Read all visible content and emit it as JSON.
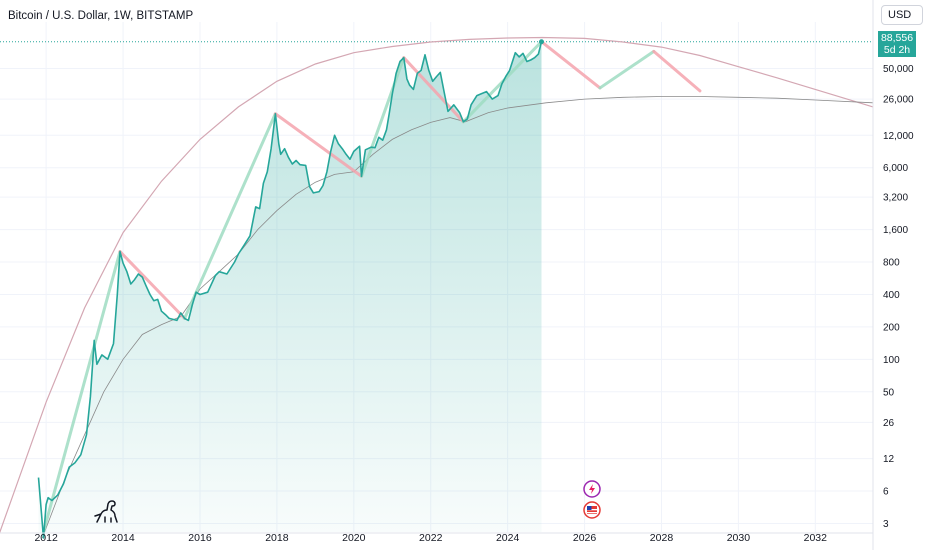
{
  "header": {
    "title": "Bitcoin / U.S. Dollar, 1W, BITSTAMP",
    "currency": "USD"
  },
  "price_badge": {
    "price": "88,556",
    "countdown": "5d 2h"
  },
  "icons": [
    "dinosaur-icon",
    "lightning-event-icon",
    "us-flag-event-icon"
  ],
  "colors": {
    "price_line": "#26a69a",
    "area_fill": "#26a69a",
    "up_segment": "#9fdcc2",
    "down_segment": "#f4a3ad",
    "upper_arc": "#d4a7b3",
    "lower_arc": "#8a8a8a"
  },
  "chart_data": {
    "type": "line",
    "scale": "log",
    "ylim": [
      2.5,
      135000
    ],
    "xlim": [
      2010.8,
      2033.5
    ],
    "yticks": [
      3,
      6,
      12,
      26,
      50,
      100,
      200,
      400,
      800,
      1600,
      3200,
      6000,
      12000,
      26000,
      50000
    ],
    "ytick_labels": [
      "3",
      "6",
      "12",
      "26",
      "50",
      "100",
      "200",
      "400",
      "800",
      "1,600",
      "3,200",
      "6,000",
      "12,000",
      "26,000",
      "50,000"
    ],
    "xticks": [
      2012,
      2014,
      2016,
      2018,
      2020,
      2022,
      2024,
      2026,
      2028,
      2030,
      2032
    ],
    "xtick_labels": [
      "2012",
      "2014",
      "2016",
      "2018",
      "2020",
      "2022",
      "2024",
      "2026",
      "2028",
      "2030",
      "2032"
    ],
    "series": [
      {
        "points": [
          [
            2011.8,
            8
          ],
          [
            2011.93,
            2.2
          ],
          [
            2012.0,
            4.5
          ],
          [
            2012.05,
            5.2
          ],
          [
            2012.15,
            4.9
          ],
          [
            2012.3,
            5.5
          ],
          [
            2012.45,
            7
          ],
          [
            2012.6,
            10
          ],
          [
            2012.75,
            11
          ],
          [
            2012.9,
            13
          ],
          [
            2013.05,
            20
          ],
          [
            2013.15,
            45
          ],
          [
            2013.25,
            150
          ],
          [
            2013.32,
            90
          ],
          [
            2013.45,
            110
          ],
          [
            2013.6,
            100
          ],
          [
            2013.75,
            140
          ],
          [
            2013.85,
            400
          ],
          [
            2013.92,
            1000
          ],
          [
            2014.0,
            780
          ],
          [
            2014.1,
            650
          ],
          [
            2014.2,
            500
          ],
          [
            2014.3,
            550
          ],
          [
            2014.4,
            620
          ],
          [
            2014.5,
            580
          ],
          [
            2014.6,
            480
          ],
          [
            2014.7,
            400
          ],
          [
            2014.8,
            350
          ],
          [
            2014.9,
            360
          ],
          [
            2015.0,
            280
          ],
          [
            2015.1,
            260
          ],
          [
            2015.2,
            240
          ],
          [
            2015.3,
            235
          ],
          [
            2015.4,
            230
          ],
          [
            2015.5,
            270
          ],
          [
            2015.6,
            240
          ],
          [
            2015.7,
            230
          ],
          [
            2015.8,
            320
          ],
          [
            2015.9,
            420
          ],
          [
            2016.0,
            400
          ],
          [
            2016.2,
            420
          ],
          [
            2016.4,
            600
          ],
          [
            2016.5,
            650
          ],
          [
            2016.7,
            620
          ],
          [
            2016.9,
            800
          ],
          [
            2017.0,
            950
          ],
          [
            2017.15,
            1150
          ],
          [
            2017.3,
            1400
          ],
          [
            2017.45,
            2600
          ],
          [
            2017.55,
            2500
          ],
          [
            2017.65,
            4300
          ],
          [
            2017.75,
            5500
          ],
          [
            2017.85,
            9000
          ],
          [
            2017.96,
            19000
          ],
          [
            2018.05,
            10000
          ],
          [
            2018.1,
            8000
          ],
          [
            2018.2,
            9000
          ],
          [
            2018.3,
            7500
          ],
          [
            2018.4,
            6500
          ],
          [
            2018.5,
            7000
          ],
          [
            2018.6,
            6400
          ],
          [
            2018.75,
            6300
          ],
          [
            2018.85,
            4000
          ],
          [
            2018.95,
            3500
          ],
          [
            2019.1,
            3600
          ],
          [
            2019.2,
            4100
          ],
          [
            2019.3,
            5500
          ],
          [
            2019.4,
            8500
          ],
          [
            2019.5,
            12000
          ],
          [
            2019.6,
            10000
          ],
          [
            2019.7,
            9000
          ],
          [
            2019.8,
            8000
          ],
          [
            2019.9,
            7200
          ],
          [
            2020.0,
            8500
          ],
          [
            2020.15,
            9500
          ],
          [
            2020.2,
            5000
          ],
          [
            2020.3,
            8800
          ],
          [
            2020.45,
            9300
          ],
          [
            2020.55,
            9200
          ],
          [
            2020.65,
            11500
          ],
          [
            2020.75,
            10800
          ],
          [
            2020.85,
            13500
          ],
          [
            2020.92,
            19000
          ],
          [
            2021.0,
            29000
          ],
          [
            2021.1,
            45000
          ],
          [
            2021.2,
            58000
          ],
          [
            2021.3,
            63000
          ],
          [
            2021.38,
            40000
          ],
          [
            2021.45,
            35000
          ],
          [
            2021.55,
            32000
          ],
          [
            2021.65,
            45000
          ],
          [
            2021.75,
            48000
          ],
          [
            2021.85,
            67000
          ],
          [
            2021.95,
            48000
          ],
          [
            2022.05,
            38000
          ],
          [
            2022.15,
            42000
          ],
          [
            2022.25,
            46000
          ],
          [
            2022.35,
            30000
          ],
          [
            2022.45,
            20000
          ],
          [
            2022.6,
            23000
          ],
          [
            2022.75,
            19500
          ],
          [
            2022.85,
            16000
          ],
          [
            2022.95,
            17000
          ],
          [
            2023.05,
            23000
          ],
          [
            2023.2,
            28000
          ],
          [
            2023.3,
            29000
          ],
          [
            2023.45,
            30500
          ],
          [
            2023.6,
            26000
          ],
          [
            2023.75,
            28000
          ],
          [
            2023.85,
            36000
          ],
          [
            2023.95,
            42000
          ],
          [
            2024.05,
            48000
          ],
          [
            2024.2,
            70000
          ],
          [
            2024.3,
            64000
          ],
          [
            2024.4,
            69000
          ],
          [
            2024.5,
            58000
          ],
          [
            2024.6,
            60000
          ],
          [
            2024.7,
            63000
          ],
          [
            2024.8,
            68000
          ],
          [
            2024.88,
            88556
          ]
        ]
      }
    ],
    "curves": [
      {
        "points": [
          [
            2010.7,
            2.0
          ],
          [
            2012.0,
            40
          ],
          [
            2013.0,
            300
          ],
          [
            2014.0,
            1500
          ],
          [
            2015.0,
            4500
          ],
          [
            2016.0,
            11000
          ],
          [
            2017.0,
            22000
          ],
          [
            2018.0,
            38000
          ],
          [
            2019.0,
            55000
          ],
          [
            2020.0,
            70000
          ],
          [
            2021.0,
            80000
          ],
          [
            2022.0,
            88000
          ],
          [
            2023.0,
            93000
          ],
          [
            2024.0,
            96000
          ],
          [
            2024.9,
            97000
          ],
          [
            2026.0,
            95000
          ],
          [
            2027.0,
            88000
          ],
          [
            2028.0,
            79000
          ],
          [
            2029.0,
            66000
          ],
          [
            2030.0,
            52000
          ],
          [
            2031.0,
            41000
          ],
          [
            2032.0,
            32000
          ],
          [
            2033.5,
            22000
          ]
        ]
      },
      {
        "points": [
          [
            2011.9,
            2.2
          ],
          [
            2012.5,
            8
          ],
          [
            2013.0,
            20
          ],
          [
            2013.5,
            50
          ],
          [
            2014.0,
            100
          ],
          [
            2014.5,
            170
          ],
          [
            2015.0,
            210
          ],
          [
            2015.5,
            250
          ],
          [
            2016.0,
            450
          ],
          [
            2016.5,
            650
          ],
          [
            2017.0,
            950
          ],
          [
            2017.5,
            1600
          ],
          [
            2018.0,
            2400
          ],
          [
            2018.5,
            3400
          ],
          [
            2019.0,
            4400
          ],
          [
            2019.5,
            5200
          ],
          [
            2020.0,
            5500
          ],
          [
            2020.5,
            8000
          ],
          [
            2021.0,
            11000
          ],
          [
            2021.5,
            13500
          ],
          [
            2022.0,
            15800
          ],
          [
            2022.5,
            17500
          ],
          [
            2022.9,
            16000
          ],
          [
            2023.5,
            19500
          ],
          [
            2024.0,
            21500
          ],
          [
            2025.0,
            24000
          ],
          [
            2026.0,
            26000
          ],
          [
            2027.0,
            27000
          ],
          [
            2028.0,
            27500
          ],
          [
            2029.0,
            27500
          ],
          [
            2030.0,
            27000
          ],
          [
            2031.0,
            26500
          ],
          [
            2032.0,
            25500
          ],
          [
            2033.5,
            24000
          ]
        ]
      }
    ],
    "segments": [
      {
        "dir": "up",
        "from": [
          2011.93,
          2.5
        ],
        "to": [
          2013.92,
          1000
        ]
      },
      {
        "dir": "down",
        "from": [
          2013.92,
          1000
        ],
        "to": [
          2015.6,
          240
        ]
      },
      {
        "dir": "up",
        "from": [
          2015.6,
          240
        ],
        "to": [
          2017.96,
          19000
        ]
      },
      {
        "dir": "down",
        "from": [
          2017.96,
          19000
        ],
        "to": [
          2020.2,
          5000
        ]
      },
      {
        "dir": "up",
        "from": [
          2020.2,
          5000
        ],
        "to": [
          2021.3,
          63000
        ]
      },
      {
        "dir": "down",
        "from": [
          2021.3,
          63000
        ],
        "to": [
          2022.85,
          16000
        ]
      },
      {
        "dir": "up",
        "from": [
          2022.85,
          16000
        ],
        "to": [
          2024.88,
          88556
        ]
      },
      {
        "dir": "down",
        "from": [
          2024.88,
          88556
        ],
        "to": [
          2026.4,
          33000
        ]
      },
      {
        "dir": "up",
        "from": [
          2026.4,
          33000
        ],
        "to": [
          2027.8,
          72000
        ]
      },
      {
        "dir": "down",
        "from": [
          2027.8,
          72000
        ],
        "to": [
          2029.0,
          31000
        ]
      }
    ]
  }
}
